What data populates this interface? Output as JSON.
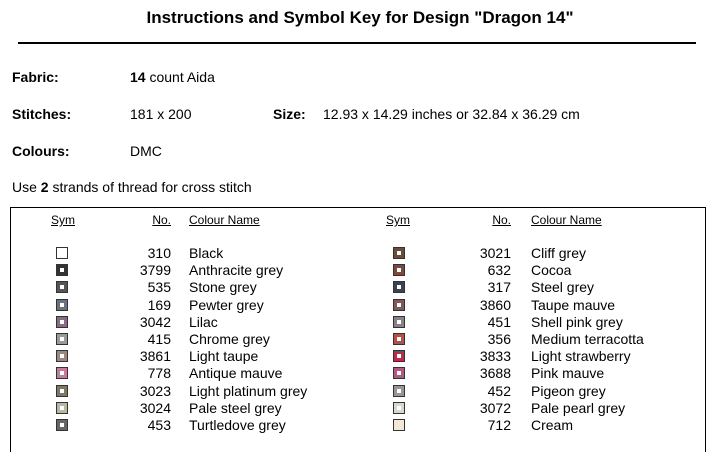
{
  "header": {
    "title": "Instructions and Symbol Key for Design \"Dragon 14\""
  },
  "fields": {
    "fabric": {
      "label": "Fabric:",
      "count": "14",
      "text": "count Aida"
    },
    "stitches": {
      "label": "Stitches:",
      "value": "181 x 200"
    },
    "size": {
      "label": "Size:",
      "value": "12.93 x 14.29 inches or 32.84 x 36.29 cm"
    },
    "colours": {
      "label": "Colours:",
      "value": "DMC"
    },
    "instruction": {
      "before": "Use",
      "strands": "2",
      "after": "strands of thread for cross stitch"
    }
  },
  "table": {
    "headers": [
      "Sym",
      "No.",
      "Colour Name",
      "Sym",
      "No.",
      "Colour Name"
    ],
    "left": [
      [
        "310",
        "Black"
      ],
      [
        "3799",
        "Anthracite grey"
      ],
      [
        "535",
        "Stone grey"
      ],
      [
        "169",
        "Pewter grey"
      ],
      [
        "3042",
        "Lilac"
      ],
      [
        "415",
        "Chrome grey"
      ],
      [
        "3861",
        "Light taupe"
      ],
      [
        "778",
        "Antique mauve"
      ],
      [
        "3023",
        "Light platinum grey"
      ],
      [
        "3024",
        "Pale steel grey"
      ],
      [
        "453",
        "Turtledove grey"
      ]
    ],
    "right": [
      [
        "3021",
        "Cliff grey"
      ],
      [
        "632",
        "Cocoa"
      ],
      [
        "317",
        "Steel grey"
      ],
      [
        "3860",
        "Taupe mauve"
      ],
      [
        "451",
        "Shell pink grey"
      ],
      [
        "356",
        "Medium terracotta"
      ],
      [
        "3833",
        "Light strawberry"
      ],
      [
        "3688",
        "Pink mauve"
      ],
      [
        "452",
        "Pigeon grey"
      ],
      [
        "3072",
        "Pale pearl grey"
      ],
      [
        "712",
        "Cream"
      ]
    ]
  }
}
